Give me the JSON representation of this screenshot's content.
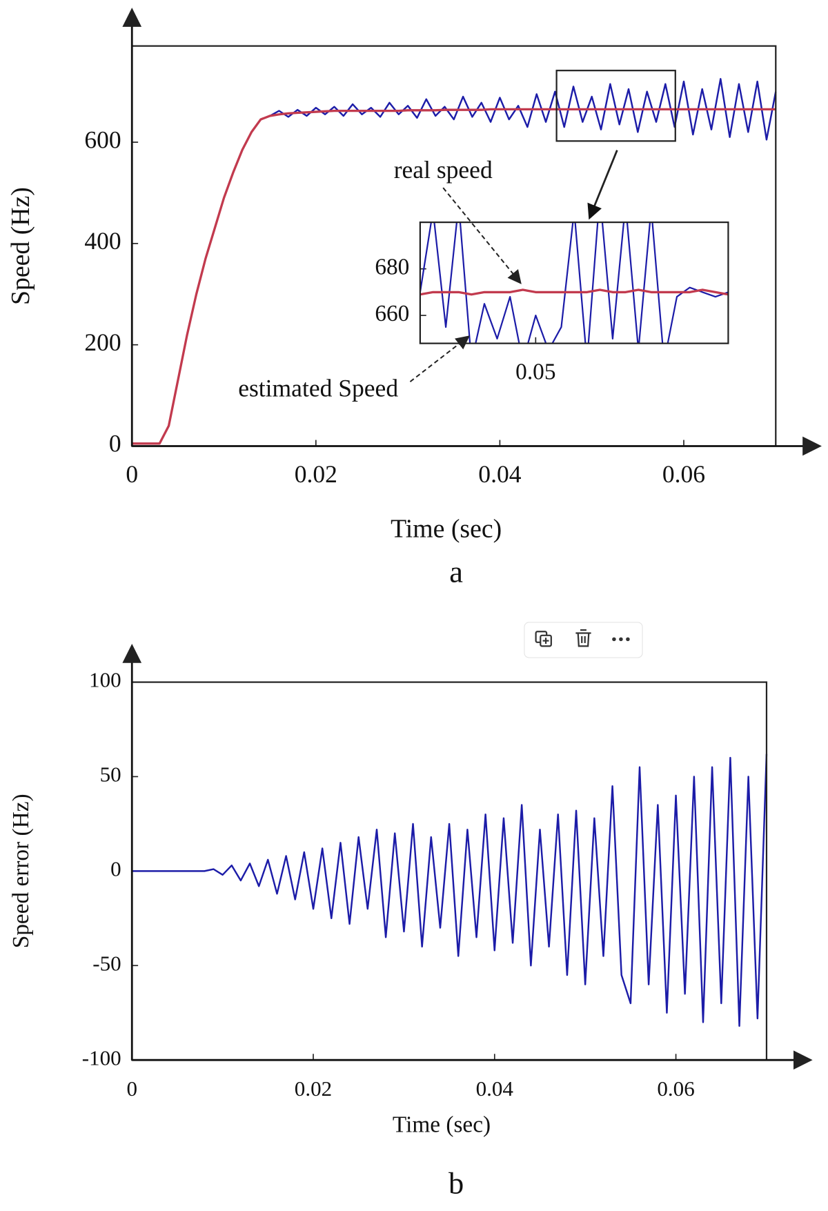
{
  "chart_data": [
    {
      "type": "line",
      "caption": "a",
      "x_label": "Time (sec)",
      "y_label": "Speed (Hz)",
      "annotations": [
        "real speed",
        "estimated Speed"
      ],
      "xlim": [
        0,
        0.07
      ],
      "ylim": [
        0,
        790
      ],
      "xticks": [
        0,
        0.02,
        0.04,
        0.06
      ],
      "yticks": [
        0,
        200,
        400,
        600
      ],
      "x": [
        0,
        0.001,
        0.002,
        0.003,
        0.004,
        0.005,
        0.006,
        0.007,
        0.008,
        0.009,
        0.01,
        0.011,
        0.012,
        0.013,
        0.014,
        0.015,
        0.016,
        0.017,
        0.018,
        0.019,
        0.02,
        0.021,
        0.022,
        0.023,
        0.024,
        0.025,
        0.026,
        0.027,
        0.028,
        0.029,
        0.03,
        0.031,
        0.032,
        0.033,
        0.034,
        0.035,
        0.036,
        0.037,
        0.038,
        0.039,
        0.04,
        0.041,
        0.042,
        0.043,
        0.044,
        0.045,
        0.046,
        0.047,
        0.048,
        0.049,
        0.05,
        0.051,
        0.052,
        0.053,
        0.054,
        0.055,
        0.056,
        0.057,
        0.058,
        0.059,
        0.06,
        0.061,
        0.062,
        0.063,
        0.064,
        0.065,
        0.066,
        0.067,
        0.068,
        0.069,
        0.07
      ],
      "series": [
        {
          "name": "estimated Speed",
          "color": "#1c1ca8",
          "values": [
            5,
            5,
            5,
            5,
            40,
            130,
            220,
            300,
            370,
            430,
            490,
            540,
            585,
            620,
            645,
            652,
            662,
            650,
            664,
            652,
            668,
            655,
            670,
            652,
            675,
            655,
            668,
            650,
            678,
            655,
            672,
            648,
            685,
            652,
            670,
            645,
            690,
            650,
            678,
            640,
            688,
            645,
            672,
            630,
            695,
            640,
            700,
            630,
            710,
            640,
            690,
            625,
            715,
            635,
            705,
            620,
            700,
            640,
            715,
            630,
            720,
            615,
            705,
            625,
            725,
            610,
            715,
            620,
            720,
            605,
            700
          ]
        },
        {
          "name": "real speed",
          "color": "#c23a4e",
          "values": [
            5,
            5,
            5,
            5,
            40,
            130,
            220,
            300,
            370,
            430,
            490,
            540,
            585,
            620,
            645,
            652,
            655,
            657,
            658,
            659,
            660,
            661,
            662,
            662,
            662,
            662,
            662,
            662,
            662,
            662,
            663,
            663,
            663,
            663,
            664,
            664,
            664,
            664,
            664,
            665,
            665,
            665,
            665,
            665,
            665,
            665,
            665,
            665,
            665,
            665,
            665,
            665,
            665,
            665,
            665,
            665,
            665,
            665,
            665,
            665,
            665,
            665,
            665,
            665,
            665,
            665,
            665,
            665,
            665,
            665,
            665
          ]
        }
      ]
    },
    {
      "type": "line",
      "xlim": [
        0.0455,
        0.0575
      ],
      "ylim": [
        648,
        700
      ],
      "xticks": [
        0.05
      ],
      "yticks": [
        660,
        680
      ],
      "x": [
        0.0455,
        0.046,
        0.0465,
        0.047,
        0.0475,
        0.048,
        0.0485,
        0.049,
        0.0495,
        0.05,
        0.0505,
        0.051,
        0.0515,
        0.052,
        0.0525,
        0.053,
        0.0535,
        0.054,
        0.0545,
        0.055,
        0.0555,
        0.056,
        0.0565,
        0.057,
        0.0575
      ],
      "series": [
        {
          "name": "estimated Speed",
          "color": "#1c1ca8",
          "values": [
            670,
            705,
            655,
            708,
            640,
            665,
            650,
            668,
            640,
            660,
            645,
            655,
            705,
            640,
            712,
            650,
            708,
            645,
            706,
            640,
            668,
            672,
            670,
            668,
            670
          ]
        },
        {
          "name": "real speed",
          "color": "#c23a4e",
          "values": [
            669,
            670,
            670,
            670,
            669,
            670,
            670,
            670,
            671,
            670,
            670,
            670,
            670,
            670,
            671,
            670,
            670,
            671,
            670,
            670,
            670,
            670,
            671,
            670,
            669
          ]
        }
      ]
    },
    {
      "type": "line",
      "caption": "b",
      "x_label": "Time (sec)",
      "y_label": "Speed error (Hz)",
      "xlim": [
        0,
        0.07
      ],
      "ylim": [
        -100,
        100
      ],
      "xticks": [
        0,
        0.02,
        0.04,
        0.06
      ],
      "yticks": [
        100,
        50,
        0,
        -50,
        -100
      ],
      "x": [
        0,
        0.001,
        0.002,
        0.003,
        0.004,
        0.005,
        0.006,
        0.007,
        0.008,
        0.009,
        0.01,
        0.011,
        0.012,
        0.013,
        0.014,
        0.015,
        0.016,
        0.017,
        0.018,
        0.019,
        0.02,
        0.021,
        0.022,
        0.023,
        0.024,
        0.025,
        0.026,
        0.027,
        0.028,
        0.029,
        0.03,
        0.031,
        0.032,
        0.033,
        0.034,
        0.035,
        0.036,
        0.037,
        0.038,
        0.039,
        0.04,
        0.041,
        0.042,
        0.043,
        0.044,
        0.045,
        0.046,
        0.047,
        0.048,
        0.049,
        0.05,
        0.051,
        0.052,
        0.053,
        0.054,
        0.055,
        0.056,
        0.057,
        0.058,
        0.059,
        0.06,
        0.061,
        0.062,
        0.063,
        0.064,
        0.065,
        0.066,
        0.067,
        0.068,
        0.069,
        0.07
      ],
      "series": [
        {
          "name": "Speed error",
          "color": "#1c1ca8",
          "values": [
            0,
            0,
            0,
            0,
            0,
            0,
            0,
            0,
            0,
            1,
            -2,
            3,
            -5,
            4,
            -8,
            6,
            -12,
            8,
            -15,
            10,
            -20,
            12,
            -25,
            15,
            -28,
            18,
            -20,
            22,
            -35,
            20,
            -32,
            25,
            -40,
            18,
            -30,
            25,
            -45,
            22,
            -35,
            30,
            -42,
            28,
            -38,
            35,
            -50,
            22,
            -40,
            30,
            -55,
            32,
            -60,
            28,
            -45,
            45,
            -55,
            -70,
            55,
            -60,
            35,
            -75,
            40,
            -65,
            50,
            -80,
            55,
            -70,
            60,
            -82,
            50,
            -78,
            62
          ]
        }
      ]
    }
  ]
}
